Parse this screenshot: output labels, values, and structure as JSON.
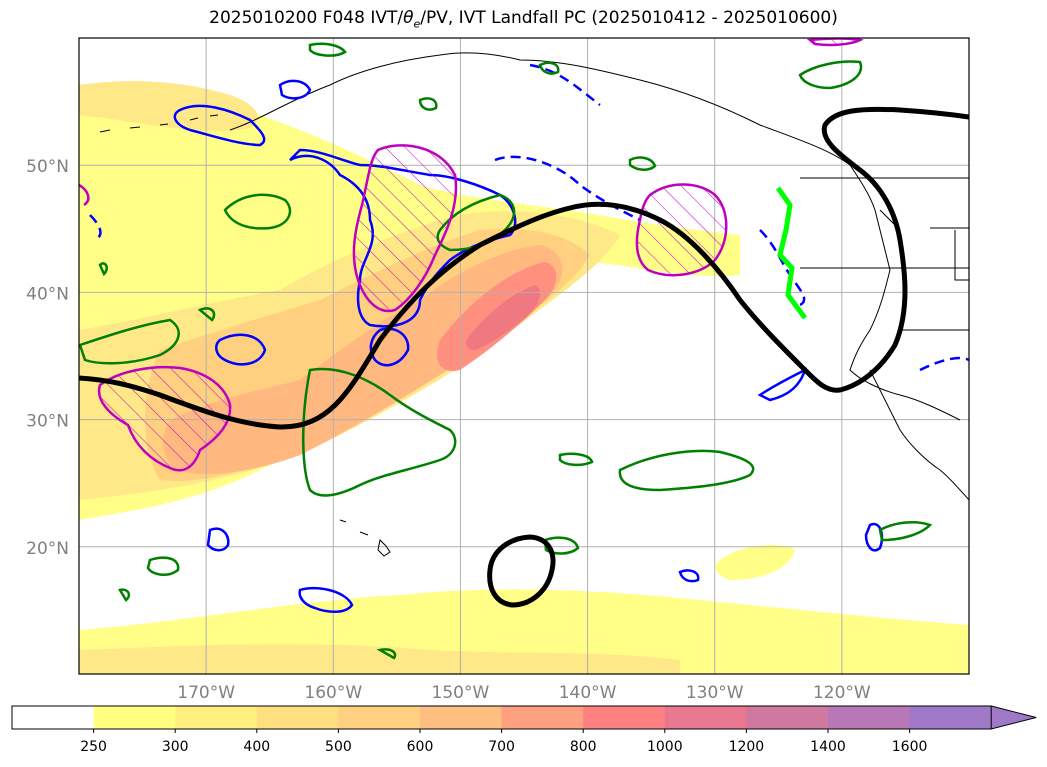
{
  "title": {
    "prefix": "2025010200 F048 IVT/",
    "theta": "θ",
    "theta_sub": "e",
    "suffix": "/PV, IVT Landfall PC (2025010412 - 2025010600)"
  },
  "map": {
    "lat_labels": [
      "50°N",
      "40°N",
      "30°N",
      "20°N"
    ],
    "lon_labels": [
      "170°W",
      "160°W",
      "150°W",
      "140°W",
      "130°W",
      "120°W"
    ],
    "lat_values": [
      50,
      40,
      30,
      20
    ],
    "lon_values": [
      -170,
      -160,
      -150,
      -140,
      -130,
      -120
    ],
    "extent": {
      "lon_min": -180,
      "lon_max": -110,
      "lat_min": 10,
      "lat_max": 60
    },
    "grid": true,
    "label_color": "#808080",
    "gridline_color": "#b0b0b0"
  },
  "colorbar": {
    "levels": [
      "250",
      "300",
      "400",
      "500",
      "600",
      "700",
      "800",
      "1000",
      "1200",
      "1400",
      "1600"
    ],
    "colors": [
      "#ffffff",
      "#ffff80",
      "#ffef80",
      "#ffdf80",
      "#ffd080",
      "#ffbf80",
      "#ffa080",
      "#ff8080",
      "#e87890",
      "#d078a0",
      "#b878b8",
      "#a078c8"
    ],
    "extend": "max"
  },
  "layers": {
    "ivt_fill_colors": [
      "#ffff88",
      "#ffe888",
      "#ffd080",
      "#ffb880",
      "#ff9080",
      "#f07880"
    ],
    "pv_contour_color": "#0000ff",
    "theta_contour_color": "#008000",
    "hatched_contour_color": "#c000c0",
    "landfall_pc_color": "#000000",
    "landfall_segment_color": "#00ff00"
  }
}
